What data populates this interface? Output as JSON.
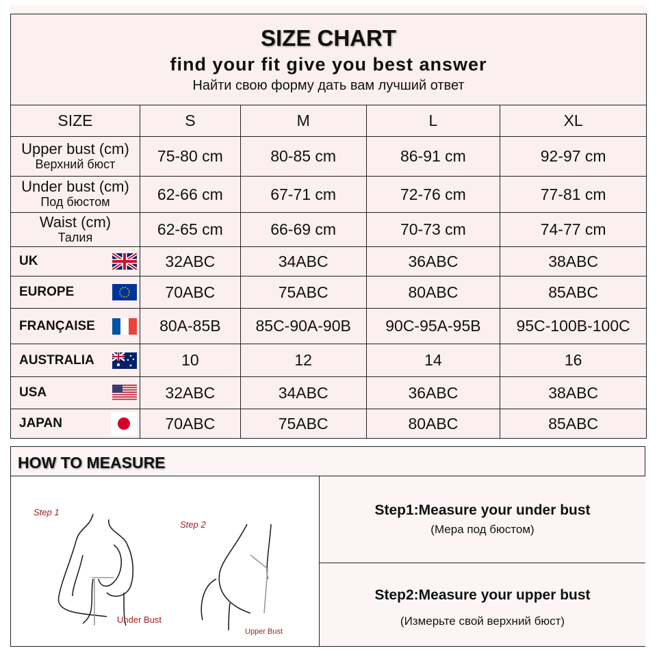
{
  "header": {
    "title": "SIZE CHART",
    "subtitle": "find your fit give you best answer",
    "subtitle_ru": "Найти свою форму дать вам лучший ответ"
  },
  "columns": [
    "SIZE",
    "S",
    "M",
    "L",
    "XL"
  ],
  "measure_rows": [
    {
      "label": "Upper bust (cm)",
      "label_ru": "Верхний бюст",
      "values": [
        "75-80 cm",
        "80-85 cm",
        "86-91 cm",
        "92-97 cm"
      ]
    },
    {
      "label": "Under bust (cm)",
      "label_ru": "Под бюстом",
      "values": [
        "62-66 cm",
        "67-71 cm",
        "72-76 cm",
        "77-81 cm"
      ]
    },
    {
      "label": "Waist (cm)",
      "label_ru": "Талия",
      "values": [
        "62-65 cm",
        "66-69 cm",
        "70-73 cm",
        "74-77 cm"
      ]
    }
  ],
  "country_rows": [
    {
      "label": "UK",
      "flag": "uk-flag",
      "values": [
        "32ABC",
        "34ABC",
        "36ABC",
        "38ABC"
      ]
    },
    {
      "label": "EUROPE",
      "flag": "eu-flag",
      "values": [
        "70ABC",
        "75ABC",
        "80ABC",
        "85ABC"
      ]
    },
    {
      "label": "FRANÇAISE",
      "flag": "france-flag",
      "values": [
        "80A-85B",
        "85C-90A-90B",
        "90C-95A-95B",
        "95C-100B-100C"
      ]
    },
    {
      "label": "AUSTRALIA",
      "flag": "australia-flag",
      "values": [
        "10",
        "12",
        "14",
        "16"
      ]
    },
    {
      "label": "USA",
      "flag": "usa-flag",
      "values": [
        "32ABC",
        "34ABC",
        "36ABC",
        "38ABC"
      ]
    },
    {
      "label": "JAPAN",
      "flag": "japan-flag",
      "values": [
        "70ABC",
        "75ABC",
        "80ABC",
        "85ABC"
      ]
    }
  ],
  "how": {
    "title": "HOW TO MEASURE",
    "illustration": {
      "step1": "Step 1",
      "step2": "Step 2",
      "under": "Under Bust",
      "upper": "Upper Bust"
    },
    "steps": [
      {
        "title": "Step1:Measure your under bust",
        "ru": "(Мера под бюстом)"
      },
      {
        "title": "Step2:Measure your upper bust",
        "ru": "(Измерьте свой верхний бюст)"
      }
    ]
  },
  "colors": {
    "label_red": "#9b1c1c",
    "row_bg": "#fbefef"
  }
}
